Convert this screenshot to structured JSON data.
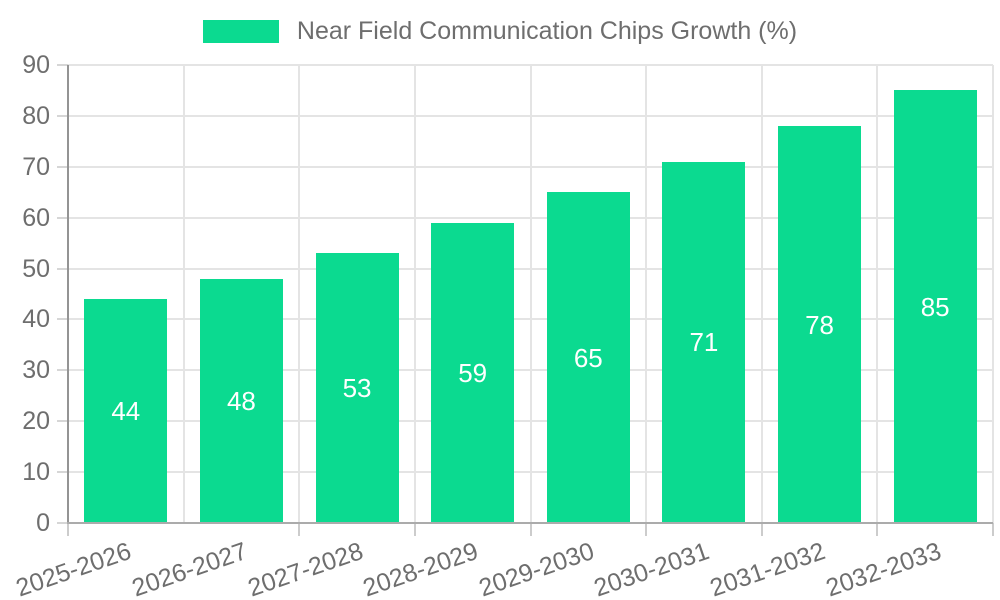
{
  "legend": {
    "label": "Near Field Communication Chips Growth (%)"
  },
  "chart_data": {
    "type": "bar",
    "title": "Near Field Communication Chips Growth (%)",
    "categories": [
      "2025-2026",
      "2026-2027",
      "2027-2028",
      "2028-2029",
      "2029-2030",
      "2030-2031",
      "2031-2032",
      "2032-2033"
    ],
    "values": [
      44,
      48,
      53,
      59,
      65,
      71,
      78,
      85
    ],
    "bar_labels": [
      "44",
      "48",
      "53",
      "59",
      "65",
      "71",
      "78",
      "85"
    ],
    "xlabel": "",
    "ylabel": "",
    "ylim": [
      0,
      90
    ],
    "yticks": [
      0,
      10,
      20,
      30,
      40,
      50,
      60,
      70,
      80,
      90
    ],
    "grid": true,
    "legend_position": "top",
    "bar_color": "#0bda90",
    "bar_label_color": "#ffffff",
    "text_color": "#6e6e6e"
  }
}
